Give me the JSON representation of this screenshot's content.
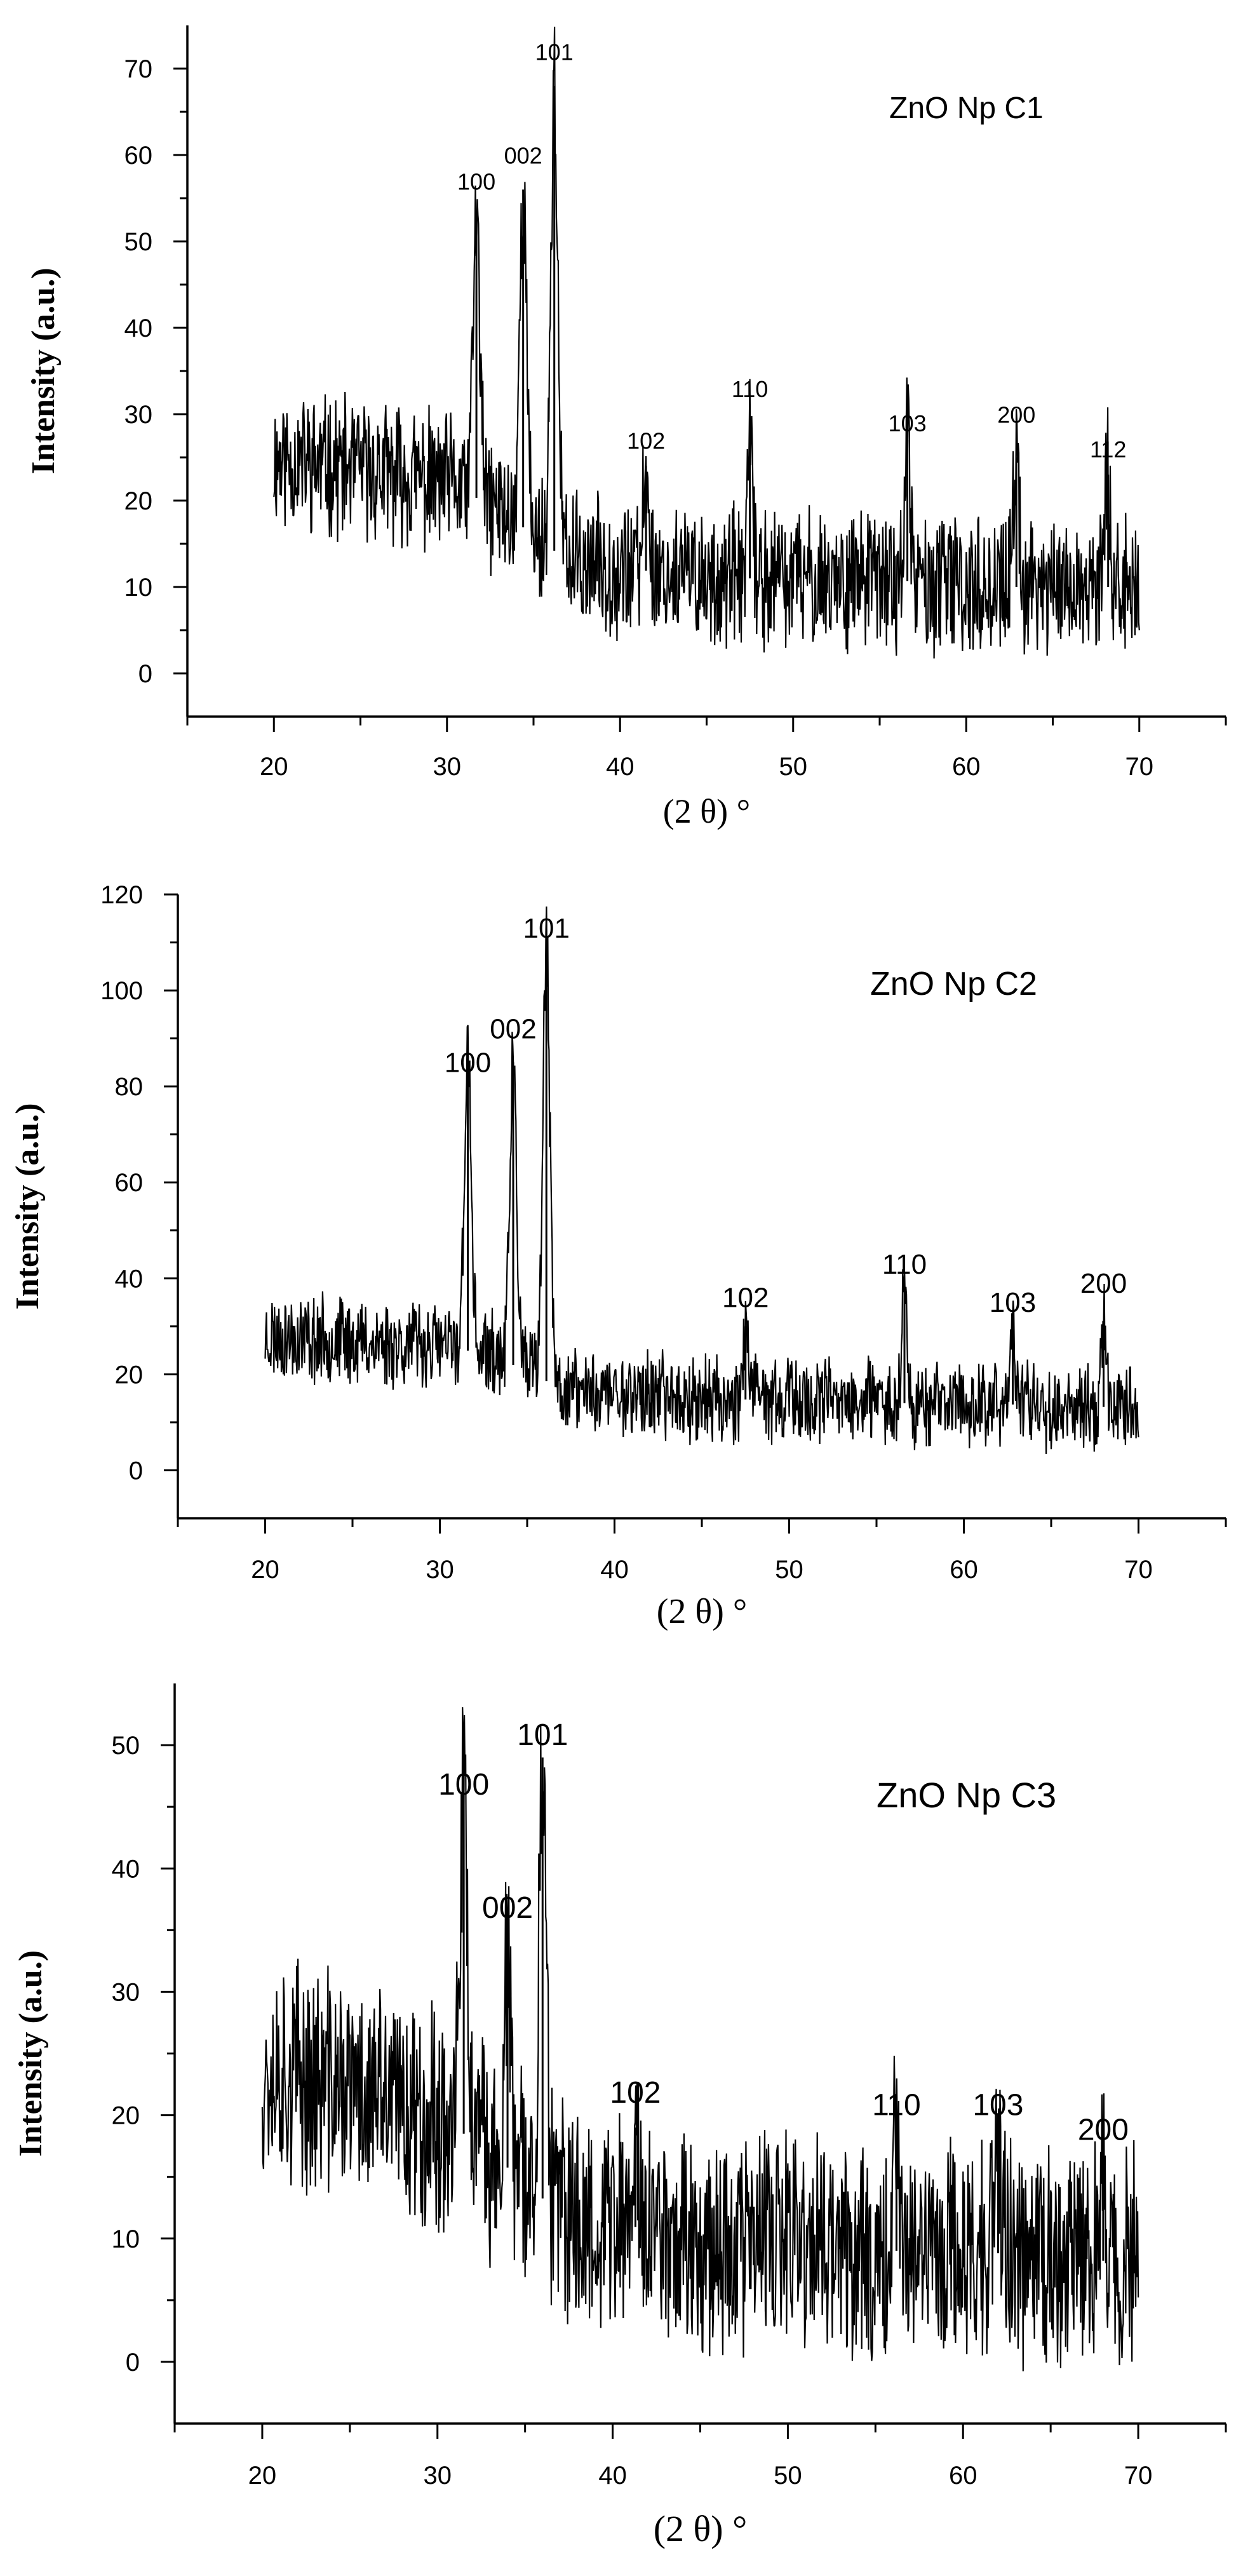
{
  "chart_data": [
    {
      "type": "line",
      "title": "ZnO Np C1",
      "xlabel": "(2 θ) °",
      "ylabel": "Intensity (a.u.)",
      "xlim": [
        15,
        75
      ],
      "ylim": [
        -5,
        75
      ],
      "xticks": [
        20,
        30,
        40,
        50,
        60,
        70
      ],
      "yticks": [
        0,
        10,
        20,
        30,
        40,
        50,
        60,
        70
      ],
      "xtick_labels": [
        "20",
        "30",
        "40",
        "50",
        "60",
        "70"
      ],
      "ytick_labels": [
        "0",
        "10",
        "20",
        "30",
        "40",
        "50",
        "60",
        "70"
      ],
      "x_range": [
        20,
        70
      ],
      "noise": {
        "seed": 11,
        "amp": 7
      },
      "baseline": [
        [
          20,
          25
        ],
        [
          30,
          22
        ],
        [
          33,
          19
        ],
        [
          37,
          13
        ],
        [
          45,
          11
        ],
        [
          55,
          11
        ],
        [
          60,
          10
        ],
        [
          70,
          10
        ]
      ],
      "peaks": [
        {
          "hkl": "100",
          "x": 31.7,
          "height": 53,
          "label_y": 56
        },
        {
          "hkl": "002",
          "x": 34.4,
          "height": 56,
          "label_y": 59
        },
        {
          "hkl": "101",
          "x": 36.2,
          "height": 68,
          "label_y": 71
        },
        {
          "hkl": "102",
          "x": 41.5,
          "height": 24,
          "label_y": 26
        },
        {
          "hkl": "110",
          "x": 47.5,
          "height": 26,
          "label_y": 32
        },
        {
          "hkl": "103",
          "x": 56.6,
          "height": 27,
          "label_y": 28
        },
        {
          "hkl": "200",
          "x": 62.9,
          "height": 25,
          "label_y": 29
        },
        {
          "hkl": "112",
          "x": 68.2,
          "height": 23,
          "label_y": 25
        }
      ]
    },
    {
      "type": "line",
      "title": "ZnO Np C2",
      "xlabel": "(2 θ) °",
      "ylabel": "Intensity (a.u.)",
      "xlim": [
        15,
        75
      ],
      "ylim": [
        -10,
        120
      ],
      "xticks": [
        20,
        30,
        40,
        50,
        60,
        70
      ],
      "yticks": [
        0,
        20,
        40,
        60,
        80,
        100,
        120
      ],
      "xtick_labels": [
        "20",
        "30",
        "40",
        "50",
        "60",
        "70"
      ],
      "ytick_labels": [
        "0",
        "20",
        "40",
        "60",
        "80",
        "100",
        "120"
      ],
      "x_range": [
        20,
        70
      ],
      "noise": {
        "seed": 23,
        "amp": 8
      },
      "baseline": [
        [
          20,
          28
        ],
        [
          30,
          26
        ],
        [
          33,
          24
        ],
        [
          37,
          17
        ],
        [
          45,
          15
        ],
        [
          55,
          14
        ],
        [
          60,
          14
        ],
        [
          70,
          13
        ]
      ],
      "peaks": [
        {
          "hkl": "100",
          "x": 31.6,
          "height": 86,
          "label_y": 83
        },
        {
          "hkl": "002",
          "x": 34.2,
          "height": 85,
          "label_y": 90
        },
        {
          "hkl": "101",
          "x": 36.1,
          "height": 109,
          "label_y": 111
        },
        {
          "hkl": "102",
          "x": 47.5,
          "height": 30,
          "label_y": 34
        },
        {
          "hkl": "110",
          "x": 56.6,
          "height": 39,
          "label_y": 41
        },
        {
          "hkl": "103",
          "x": 62.8,
          "height": 31,
          "label_y": 33
        },
        {
          "hkl": "200",
          "x": 68.0,
          "height": 31,
          "label_y": 37
        }
      ]
    },
    {
      "type": "line",
      "title": "ZnO Np C3",
      "xlabel": "(2 θ) °",
      "ylabel": "Intensity (a.u.)",
      "xlim": [
        15,
        75
      ],
      "ylim": [
        -5,
        55
      ],
      "xticks": [
        20,
        30,
        40,
        50,
        60,
        70
      ],
      "yticks": [
        0,
        10,
        20,
        30,
        40,
        50
      ],
      "xtick_labels": [
        "20",
        "30",
        "40",
        "50",
        "60",
        "70"
      ],
      "ytick_labels": [
        "0",
        "10",
        "20",
        "30",
        "40",
        "50"
      ],
      "x_range": [
        20,
        70
      ],
      "noise": {
        "seed": 37,
        "amp": 8
      },
      "baseline": [
        [
          20,
          24
        ],
        [
          30,
          20
        ],
        [
          33,
          17
        ],
        [
          37,
          12
        ],
        [
          45,
          10
        ],
        [
          55,
          9
        ],
        [
          60,
          9
        ],
        [
          70,
          8
        ]
      ],
      "peaks": [
        {
          "hkl": "100",
          "x": 31.5,
          "height": 46,
          "label_y": 46
        },
        {
          "hkl": "002",
          "x": 34.0,
          "height": 34,
          "label_y": 36
        },
        {
          "hkl": "101",
          "x": 36.0,
          "height": 49,
          "label_y": 50
        },
        {
          "hkl": "102",
          "x": 41.3,
          "height": 19,
          "label_y": 21
        },
        {
          "hkl": "110",
          "x": 56.2,
          "height": 20,
          "label_y": 20
        },
        {
          "hkl": "103",
          "x": 62.0,
          "height": 20,
          "label_y": 20
        },
        {
          "hkl": "200",
          "x": 68.0,
          "height": 17,
          "label_y": 18
        }
      ]
    }
  ]
}
